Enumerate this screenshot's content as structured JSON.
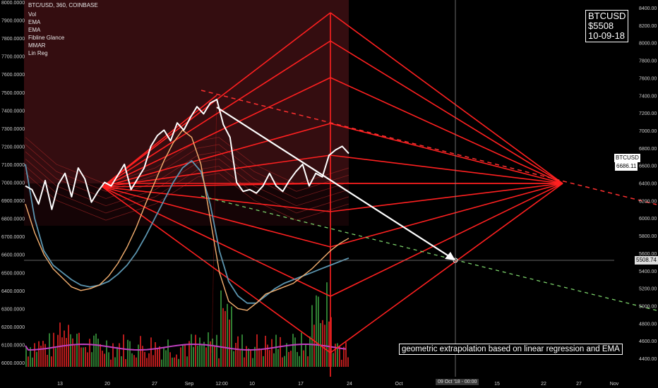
{
  "symbol_line": "BTC/USD, 360, COINBASE",
  "indicators": [
    "Vol",
    "EMA",
    "EMA",
    "Fibline Glance",
    "MMAR",
    "Lin Reg"
  ],
  "info_box": {
    "line1": "BTCUSD",
    "line2": "$5508",
    "line3": "10-09-18"
  },
  "caption": "geometric extrapolation based on linear regression and EMA",
  "price_tag": {
    "label": "BTCUSD",
    "value": "6686.11"
  },
  "crosshair_price": "5508.74",
  "crosshair_date": "09 Oct '18 - 00:00",
  "left_axis": [
    "8000.0000",
    "7900.0000",
    "7800.0000",
    "7700.0000",
    "7600.0000",
    "7500.0000",
    "7400.0000",
    "7300.0000",
    "7200.0000",
    "7100.0000",
    "7000.0000",
    "6900.0000",
    "6800.0000",
    "6700.0000",
    "6600.0000",
    "6500.0000",
    "6400.0000",
    "6300.0000",
    "6200.0000",
    "6100.0000",
    "6000.0000"
  ],
  "right_axis": [
    "8400.00",
    "8200.00",
    "8000.00",
    "7800.00",
    "7600.00",
    "7400.00",
    "7200.00",
    "7000.00",
    "6800.00",
    "6600.00",
    "6400.00",
    "6200.00",
    "6000.00",
    "5800.00",
    "5600.00",
    "5400.00",
    "5200.00",
    "5000.00",
    "4800.00",
    "4600.00",
    "4400.00"
  ],
  "x_axis": [
    "13",
    "20",
    "27",
    "Sep",
    "12:00",
    "10",
    "17",
    "24",
    "Oct",
    "15",
    "22",
    "27",
    "Nov"
  ],
  "colors": {
    "price": "#ffffff",
    "fan": "#ff2020",
    "ema_fast": "#f5b070",
    "ema_slow": "#5b95b0",
    "mmar": "#c040c0",
    "vol_up": "#2e7d32",
    "vol_down": "#b71c1c",
    "projection": "#ffffff",
    "trend_red": "#ff3030",
    "trend_green": "#7cd36b"
  },
  "chart_data": {
    "type": "line",
    "title": "BTC/USD, 360, COINBASE",
    "y_left_range": [
      6000,
      8000
    ],
    "y_right_range": [
      4400,
      8400
    ],
    "x_ticks": [
      "13",
      "20",
      "27",
      "Sep",
      "12:00",
      "10",
      "17",
      "24",
      "Oct",
      "15",
      "22",
      "27",
      "Nov"
    ],
    "series": [
      {
        "name": "BTC/USD",
        "values": [
          6980,
          6960,
          6880,
          7010,
          6850,
          6990,
          7050,
          6920,
          7080,
          7020,
          6890,
          6950,
          7000,
          6980,
          7040,
          7100,
          6960,
          7020,
          7080,
          7200,
          7260,
          7290,
          7230,
          7330,
          7290,
          7360,
          7420,
          7380,
          7440,
          7460,
          7320,
          7250,
          7000,
          6950,
          6960,
          6940,
          6980,
          7050,
          6980,
          6950,
          7010,
          7060,
          7100,
          6980,
          7050,
          7030,
          7150,
          7180,
          7200,
          7160
        ],
        "unit": "left axis"
      },
      {
        "name": "EMA",
        "values": [
          6880,
          6720,
          6600,
          6520,
          6470,
          6420,
          6400,
          6410,
          6430,
          6480,
          6550,
          6640,
          6750,
          6880,
          7000,
          7120,
          7220,
          7290,
          7250,
          7100,
          6800,
          6500,
          6340,
          6300,
          6290,
          6330,
          6380,
          6400,
          6420,
          6440,
          6480,
          6520,
          6570,
          6620,
          6660,
          6690
        ],
        "unit": "left axis"
      },
      {
        "name": "EMA",
        "values": [
          7100,
          6800,
          6620,
          6540,
          6500,
          6460,
          6430,
          6420,
          6430,
          6450,
          6490,
          6540,
          6610,
          6700,
          6800,
          6900,
          7000,
          7080,
          7120,
          7060,
          6880,
          6620,
          6450,
          6370,
          6330,
          6330,
          6370,
          6410,
          6440,
          6460,
          6480,
          6500,
          6520,
          6540,
          6560,
          6580
        ],
        "unit": "left axis"
      }
    ],
    "projection": {
      "from_label": "Sep 7 high",
      "to_price": 5508,
      "to_date": "09 Oct '18"
    },
    "fan_apex_right_price": 6400,
    "volume_note": "volume histogram at bottom"
  }
}
